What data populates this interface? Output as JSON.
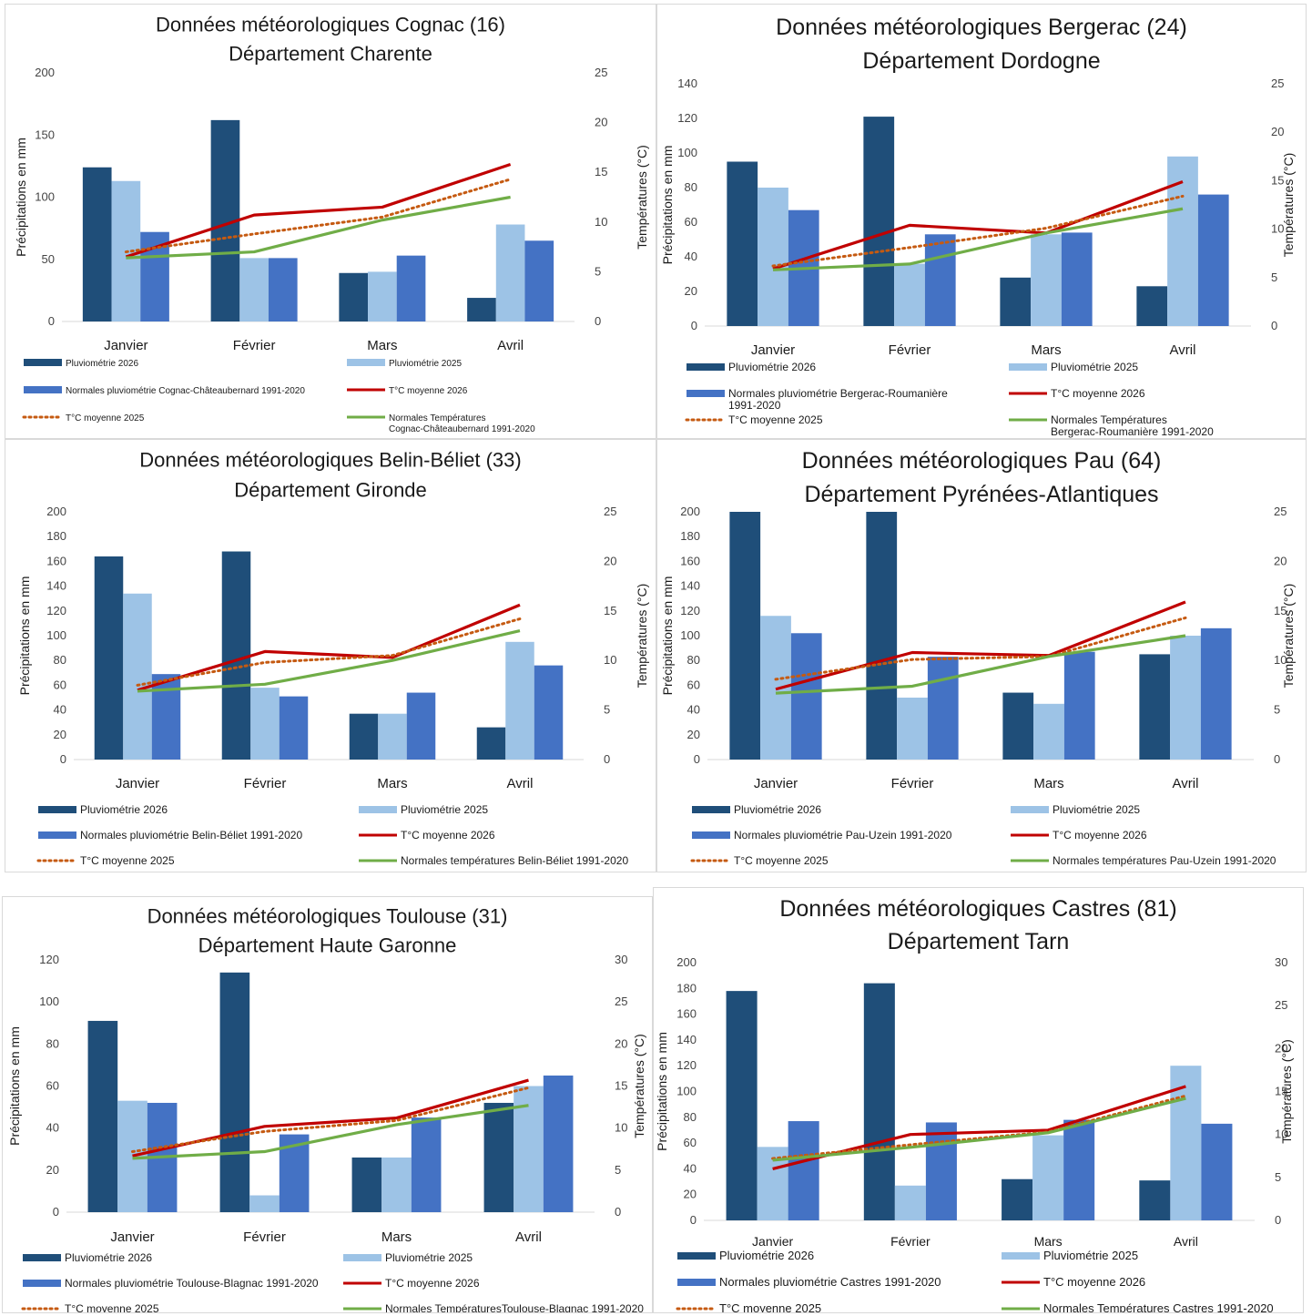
{
  "legend_labels": {
    "rain_2026": "Pluviométrie 2026",
    "rain_2025": "Pluviométrie 2025",
    "temp_2026": "T°C moyenne 2026",
    "temp_2025": "T°C moyenne 2025"
  },
  "colors": {
    "rain_2026": "#1f4e79",
    "rain_2025": "#9dc3e6",
    "rain_normal": "#4472c4",
    "temp_2026": "#c00000",
    "temp_2025": "#c55a11",
    "temp_normal": "#70ad47"
  },
  "chart_data": [
    {
      "type": "bar",
      "title_line1": "Données météorologiques Cognac (16)",
      "title_line2": "Département Charente",
      "categories": [
        "Janvier",
        "Février",
        "Mars",
        "Avril"
      ],
      "ylabel": "Précipitations en mm",
      "y2label": "Températures (°C)",
      "ylim": [
        0,
        200
      ],
      "yticks": [
        0,
        50,
        100,
        150,
        200
      ],
      "y2lim": [
        0,
        25
      ],
      "y2ticks": [
        0,
        5,
        10,
        15,
        20,
        25
      ],
      "series": [
        {
          "name": "Pluviométrie 2026",
          "kind": "bar",
          "values": [
            124,
            162,
            39,
            19
          ]
        },
        {
          "name": "Pluviométrie 2025",
          "kind": "bar",
          "values": [
            113,
            51,
            40,
            78
          ]
        },
        {
          "name": "Normales pluviométrie Cognac-Châteaubernard 1991-2020",
          "kind": "bar",
          "values": [
            72,
            51,
            53,
            65
          ]
        },
        {
          "name": "T°C moyenne 2026",
          "kind": "line",
          "values": [
            6.5,
            10.7,
            11.5,
            15.8
          ]
        },
        {
          "name": "T°C moyenne 2025",
          "kind": "line",
          "dashed": true,
          "values": [
            7.0,
            8.8,
            10.5,
            14.3
          ]
        },
        {
          "name": "Normales Températures Cognac-Châteaubernard 1991-2020",
          "kind": "line",
          "values": [
            6.4,
            7.0,
            10.2,
            12.5
          ]
        }
      ],
      "legend_normal_rain": [
        "Normales pluviométrie Cognac-Châteaubernard 1991-2020"
      ],
      "legend_normal_temp": [
        "Normales Températures",
        "Cognac-Châteaubernard 1991-2020"
      ]
    },
    {
      "type": "bar",
      "title_line1": "Données météorologiques Bergerac (24)",
      "title_line2": "Département Dordogne",
      "categories": [
        "Janvier",
        "Février",
        "Mars",
        "Avril"
      ],
      "ylabel": "Précipitations en mm",
      "y2label": "Températures (°C)",
      "ylim": [
        0,
        140
      ],
      "yticks": [
        0,
        20,
        40,
        60,
        80,
        100,
        120,
        140
      ],
      "y2lim": [
        0,
        25
      ],
      "y2ticks": [
        0,
        5,
        10,
        15,
        20,
        25
      ],
      "series": [
        {
          "name": "Pluviométrie 2026",
          "kind": "bar",
          "values": [
            95,
            121,
            28,
            23
          ]
        },
        {
          "name": "Pluviométrie 2025",
          "kind": "bar",
          "values": [
            80,
            36,
            53,
            98
          ]
        },
        {
          "name": "Normales pluviométrie Bergerac-Roumanière 1991-2020",
          "kind": "bar",
          "values": [
            67,
            53,
            54,
            76
          ]
        },
        {
          "name": "T°C moyenne 2026",
          "kind": "line",
          "values": [
            5.9,
            10.4,
            9.6,
            14.9
          ]
        },
        {
          "name": "T°C moyenne 2025",
          "kind": "line",
          "dashed": true,
          "values": [
            6.2,
            8.1,
            10.1,
            13.4
          ]
        },
        {
          "name": "Normales Températures Bergerac-Roumanière 1991-2020",
          "kind": "line",
          "values": [
            5.8,
            6.4,
            9.6,
            12.1
          ]
        }
      ],
      "legend_normal_rain": [
        "Normales pluviométrie Bergerac-Roumanière",
        "1991-2020"
      ],
      "legend_normal_temp": [
        "Normales Températures",
        "Bergerac-Roumanière  1991-2020"
      ]
    },
    {
      "type": "bar",
      "title_line1": "Données météorologiques Belin-Béliet (33)",
      "title_line2": "Département Gironde",
      "categories": [
        "Janvier",
        "Février",
        "Mars",
        "Avril"
      ],
      "ylabel": "Précipitations en mm",
      "y2label": "Températures (°C)",
      "ylim": [
        0,
        200
      ],
      "yticks": [
        0,
        20,
        40,
        60,
        80,
        100,
        120,
        140,
        160,
        180,
        200
      ],
      "y2lim": [
        0,
        25
      ],
      "y2ticks": [
        0,
        5,
        10,
        15,
        20,
        25
      ],
      "series": [
        {
          "name": "Pluviométrie 2026",
          "kind": "bar",
          "values": [
            164,
            168,
            37,
            26
          ]
        },
        {
          "name": "Pluviométrie 2025",
          "kind": "bar",
          "values": [
            134,
            58,
            37,
            95
          ]
        },
        {
          "name": "Normales pluviométrie Belin-Béliet 1991-2020",
          "kind": "bar",
          "values": [
            69,
            51,
            54,
            76
          ]
        },
        {
          "name": "T°C moyenne 2026",
          "kind": "line",
          "values": [
            7.0,
            10.9,
            10.3,
            15.6
          ]
        },
        {
          "name": "T°C moyenne 2025",
          "kind": "line",
          "dashed": true,
          "values": [
            7.5,
            9.8,
            10.5,
            14.2
          ]
        },
        {
          "name": "Normales températures Belin-Béliet 1991-2020",
          "kind": "line",
          "values": [
            6.9,
            7.6,
            10.0,
            13.0
          ]
        }
      ],
      "legend_normal_rain": [
        "Normales pluviométrie Belin-Béliet 1991-2020"
      ],
      "legend_normal_temp": [
        "Normales températures Belin-Béliet 1991-2020"
      ]
    },
    {
      "type": "bar",
      "title_line1": "Données météorologiques Pau (64)",
      "title_line2": "Département Pyrénées-Atlantiques",
      "categories": [
        "Janvier",
        "Février",
        "Mars",
        "Avril"
      ],
      "ylabel": "Précipitations en mm",
      "y2label": "Températures (°C)",
      "ylim": [
        0,
        200
      ],
      "yticks": [
        0,
        20,
        40,
        60,
        80,
        100,
        120,
        140,
        160,
        180,
        200
      ],
      "y2lim": [
        0,
        25
      ],
      "y2ticks": [
        0,
        5,
        10,
        15,
        20,
        25
      ],
      "series": [
        {
          "name": "Pluviométrie 2026",
          "kind": "bar",
          "values": [
            200,
            200,
            54,
            85
          ]
        },
        {
          "name": "Pluviométrie 2025",
          "kind": "bar",
          "values": [
            116,
            50,
            45,
            100
          ]
        },
        {
          "name": "Normales pluviométrie Pau-Uzein 1991-2020",
          "kind": "bar",
          "values": [
            102,
            83,
            87,
            106
          ]
        },
        {
          "name": "T°C moyenne 2026",
          "kind": "line",
          "values": [
            7.1,
            10.8,
            10.5,
            15.9
          ]
        },
        {
          "name": "T°C moyenne 2025",
          "kind": "line",
          "dashed": true,
          "values": [
            8.1,
            10.1,
            10.4,
            14.3
          ]
        },
        {
          "name": "Normales températures Pau-Uzein 1991-2020",
          "kind": "line",
          "values": [
            6.7,
            7.4,
            10.4,
            12.5
          ]
        }
      ],
      "legend_normal_rain": [
        "Normales pluviométrie Pau-Uzein 1991-2020"
      ],
      "legend_normal_temp": [
        "Normales températures Pau-Uzein 1991-2020"
      ]
    },
    {
      "type": "bar",
      "title_line1": "Données météorologiques Toulouse (31)",
      "title_line2": "Département Haute Garonne",
      "categories": [
        "Janvier",
        "Février",
        "Mars",
        "Avril"
      ],
      "ylabel": "Précipitations en mm",
      "y2label": "Températures (°C)",
      "ylim": [
        0,
        120
      ],
      "yticks": [
        0,
        20,
        40,
        60,
        80,
        100,
        120
      ],
      "y2lim": [
        0,
        30
      ],
      "y2ticks": [
        0,
        5,
        10,
        15,
        20,
        25,
        30
      ],
      "series": [
        {
          "name": "Pluviométrie 2026",
          "kind": "bar",
          "values": [
            91,
            114,
            26,
            52
          ]
        },
        {
          "name": "Pluviométrie 2025",
          "kind": "bar",
          "values": [
            53,
            8,
            26,
            60
          ]
        },
        {
          "name": "Normales pluviométrie Toulouse-Blagnac 1991-2020",
          "kind": "bar",
          "values": [
            52,
            37,
            45,
            65
          ]
        },
        {
          "name": "T°C moyenne 2026",
          "kind": "line",
          "values": [
            6.7,
            10.2,
            11.2,
            15.7
          ]
        },
        {
          "name": "T°C moyenne 2025",
          "kind": "line",
          "dashed": true,
          "values": [
            7.2,
            9.6,
            10.9,
            14.8
          ]
        },
        {
          "name": "Normales TempératuresToulouse-Blagnac 1991-2020",
          "kind": "line",
          "values": [
            6.4,
            7.2,
            10.4,
            12.7
          ]
        }
      ],
      "legend_normal_rain": [
        "Normales pluviométrie Toulouse-Blagnac 1991-2020"
      ],
      "legend_normal_temp": [
        "Normales TempératuresToulouse-Blagnac 1991-2020"
      ]
    },
    {
      "type": "bar",
      "title_line1": "Données météorologiques Castres (81)",
      "title_line2": "Département Tarn",
      "categories": [
        "Janvier",
        "Février",
        "Mars",
        "Avril"
      ],
      "ylabel": "Précipitations en mm",
      "y2label": "Températures (°C)",
      "ylim": [
        0,
        200
      ],
      "yticks": [
        0,
        20,
        40,
        60,
        80,
        100,
        120,
        140,
        160,
        180,
        200
      ],
      "y2lim": [
        0,
        30
      ],
      "y2ticks": [
        0,
        5,
        10,
        15,
        20,
        25,
        30
      ],
      "series": [
        {
          "name": "Pluviométrie 2026",
          "kind": "bar",
          "values": [
            178,
            184,
            32,
            31
          ]
        },
        {
          "name": "Pluviométrie 2025",
          "kind": "bar",
          "values": [
            57,
            27,
            66,
            120
          ]
        },
        {
          "name": "Normales pluviométrie Castres 1991-2020",
          "kind": "bar",
          "values": [
            77,
            76,
            78,
            75
          ]
        },
        {
          "name": "T°C moyenne 2026",
          "kind": "line",
          "values": [
            6.0,
            10.0,
            10.5,
            15.6
          ]
        },
        {
          "name": "T°C moyenne 2025",
          "kind": "line",
          "dashed": true,
          "values": [
            7.2,
            8.8,
            10.3,
            14.5
          ]
        },
        {
          "name": "Normales Températures Castres 1991-2020",
          "kind": "line",
          "values": [
            7.0,
            8.5,
            10.2,
            14.2
          ]
        }
      ],
      "legend_normal_rain": [
        "Normales pluviométrie Castres 1991-2020"
      ],
      "legend_normal_temp": [
        "Normales Températures Castres 1991-2020"
      ]
    }
  ]
}
